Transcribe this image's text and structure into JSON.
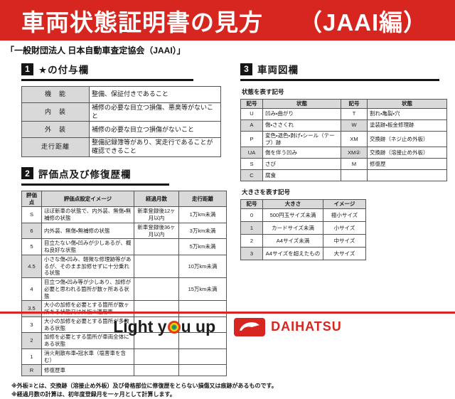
{
  "header": {
    "title": "車両状態証明書の見方",
    "edition": "（JAAI編）",
    "association": "「一般財団法人 日本自動車査定協会（JAAI）」"
  },
  "sections": {
    "star": {
      "number": "1",
      "title": "★の付与欄",
      "table": {
        "rows": [
          [
            "機　能",
            "整備、保証付きであること"
          ],
          [
            "内　装",
            "補修の必要な目立つ損傷、悪臭等がないこと"
          ],
          [
            "外　装",
            "補修の必要な目立つ損傷がないこと"
          ],
          [
            "走行距離",
            "整備記録簿等があり、実走行であることが確認できること"
          ]
        ]
      }
    },
    "grade": {
      "number": "2",
      "title": "評価点及び修復歴欄",
      "table": {
        "headers": [
          "評価点",
          "評価点設定イメージ",
          "経過月数",
          "走行距離"
        ],
        "rows": [
          [
            "S",
            "ほぼ新車の状態で、内外装、無傷・無補修の状態",
            "新車登録後12ヶ月以内",
            "1万km未満"
          ],
          [
            "6",
            "内外装、無傷・無補修の状態",
            "新車登録後36ヶ月以内",
            "3万km未満"
          ],
          [
            "5",
            "目立たない傷・凹みが少しあるが、概ね良好な状態",
            "",
            "5万km未満"
          ],
          [
            "4.5",
            "小さな傷・凹み、軽微な修理跡等があるが、そのまま加修せずに十分乗れる状態",
            "",
            "10万km未満"
          ],
          [
            "4",
            "目立つ傷・凹み等が少しあり、加修が必要と思われる箇所が数ヶ所ある状態",
            "",
            "15万km未満"
          ],
          [
            "3.5",
            "大小の加修を必要とする箇所が数ヶ所ある状態又は外板②適用車",
            "",
            ""
          ],
          [
            "3",
            "大小の加修を必要とする箇所が多数ある状態",
            "",
            ""
          ],
          [
            "2",
            "加修を必要とする箇所が車両全体にある状態",
            "",
            ""
          ],
          [
            "1",
            "消火剤散布車・冠水車（塩害車を含む）",
            "",
            ""
          ],
          [
            "R",
            "修復歴車",
            "",
            ""
          ]
        ]
      }
    },
    "diagram": {
      "number": "3",
      "title": "車両図欄",
      "condition": {
        "caption": "状態を表す記号",
        "table": {
          "headers": [
            "記号",
            "状態",
            "記号",
            "状態"
          ],
          "rows": [
            [
              "U",
              "凹み・曲がり",
              "T",
              "割れ・亀裂・穴"
            ],
            [
              "A",
              "傷・ささくれ",
              "W",
              "塗装跡・板金修理跡"
            ],
            [
              "P",
              "変色・退色・剥げ・シール（テープ）跡",
              "XM",
              "交換跡（ネジ止め外板）"
            ],
            [
              "UA",
              "傷を伴う凹み",
              "XM②",
              "交換跡（溶接止め外板）"
            ],
            [
              "S",
              "さび",
              "M",
              "修復歴"
            ],
            [
              "C",
              "腐食",
              "",
              ""
            ]
          ]
        }
      },
      "size": {
        "caption": "大きさを表す記号",
        "table": {
          "headers": [
            "記号",
            "大きさ",
            "イメージ"
          ],
          "rows": [
            [
              "0",
              "500円玉サイズ未満",
              "極小サイズ"
            ],
            [
              "1",
              "カードサイズ未満",
              "小サイズ"
            ],
            [
              "2",
              "A4サイズ未満",
              "中サイズ"
            ],
            [
              "3",
              "A4サイズを超えたもの",
              "大サイズ"
            ]
          ]
        }
      }
    }
  },
  "notes": [
    "※外板②とは、交換跡（溶接止め外板）及び骨格部位に修復歴をとらない損傷又は痕跡があるものです。",
    "※経過月数の計算は、初年度登録月を一ヶ月として計算します。"
  ],
  "footer": {
    "tagline_part1": "Light y",
    "tagline_part2": "u up",
    "brand": "DAIHATSU"
  },
  "colors": {
    "accent_red": "#d7261f",
    "table_gray": "#d9d9d9",
    "black": "#141414"
  }
}
